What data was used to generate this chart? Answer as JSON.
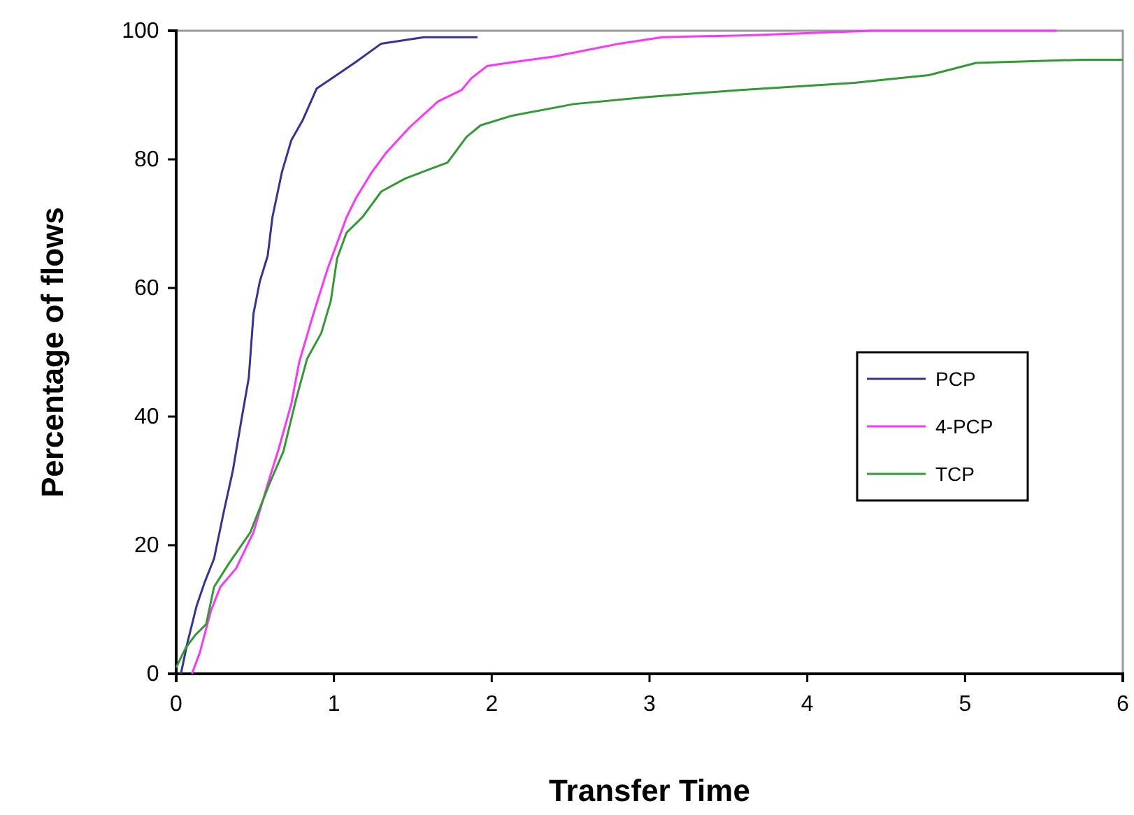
{
  "chart_data": {
    "type": "line",
    "xlabel": "Transfer Time",
    "ylabel": "Percentage of flows",
    "xlim": [
      0,
      6
    ],
    "xticks": [
      0,
      1,
      2,
      3,
      4,
      5,
      6
    ],
    "ylim": [
      0,
      100
    ],
    "yticks": [
      0,
      20,
      40,
      60,
      80,
      100
    ],
    "grid": false,
    "legend": "right",
    "line_style": "solid",
    "marker": "none",
    "series": [
      {
        "name": "PCP",
        "color": "#333399",
        "x": [
          0.03,
          0.07,
          0.13,
          0.18,
          0.24,
          0.3,
          0.36,
          0.41,
          0.46,
          0.49,
          0.53,
          0.58,
          0.61,
          0.67,
          0.73,
          0.8,
          0.89,
          1.01,
          1.13,
          1.3,
          1.57,
          1.91
        ],
        "values": [
          0,
          4.7,
          10.6,
          14.2,
          17.9,
          25,
          31.7,
          39,
          46,
          56,
          61,
          65,
          71,
          78,
          83,
          86,
          91,
          93,
          95,
          98,
          99,
          99
        ]
      },
      {
        "name": "4-PCP",
        "color": "#ff33ff",
        "x": [
          0.1,
          0.15,
          0.22,
          0.28,
          0.38,
          0.49,
          0.58,
          0.65,
          0.73,
          0.78,
          0.87,
          0.96,
          1.08,
          1.14,
          1.24,
          1.33,
          1.48,
          1.66,
          1.81,
          1.87,
          1.97,
          2.1,
          2.4,
          2.81,
          3.08,
          3.63,
          4.41,
          5.58
        ],
        "values": [
          0,
          3.3,
          9.8,
          13.5,
          16.4,
          22,
          29.5,
          35,
          42,
          48.5,
          56,
          63,
          71,
          74,
          78,
          81,
          85,
          89,
          90.8,
          92.6,
          94.5,
          95,
          96,
          98,
          99,
          99.3,
          100,
          100
        ]
      },
      {
        "name": "TCP",
        "color": "#339933",
        "x": [
          0,
          0.06,
          0.12,
          0.19,
          0.24,
          0.33,
          0.47,
          0.59,
          0.68,
          0.76,
          0.83,
          0.92,
          0.98,
          1.02,
          1.08,
          1.18,
          1.3,
          1.45,
          1.6,
          1.72,
          1.84,
          1.93,
          2.13,
          2.52,
          2.99,
          3.58,
          4.3,
          4.77,
          5.07,
          5.75,
          6
        ],
        "values": [
          1,
          4,
          6,
          7.7,
          13.5,
          17,
          22,
          29.5,
          34.6,
          42.7,
          49,
          53,
          58,
          64.6,
          68.6,
          71,
          75,
          77,
          78.4,
          79.5,
          83.5,
          85.3,
          86.8,
          88.6,
          89.7,
          90.8,
          91.9,
          93.1,
          95,
          95.5,
          95.5
        ]
      }
    ]
  }
}
